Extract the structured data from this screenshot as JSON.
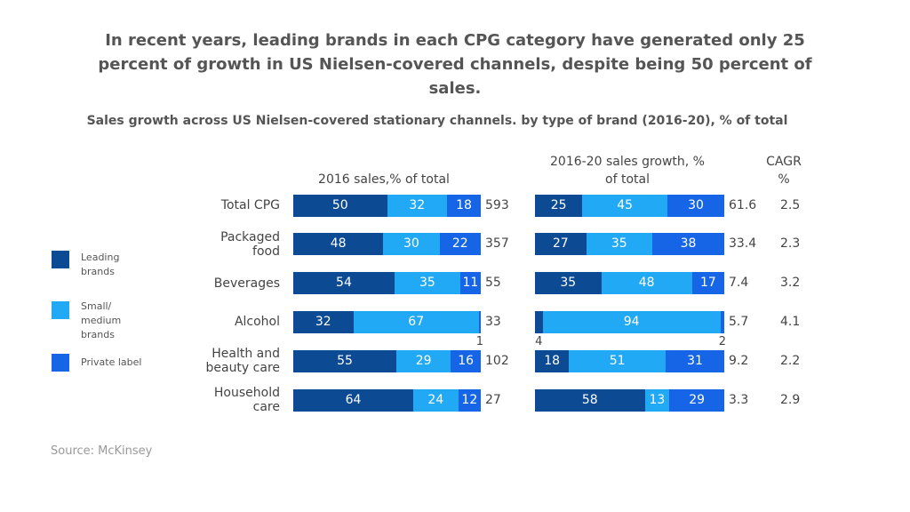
{
  "title": "In recent years, leading brands in each CPG category have generated only 25 percent of growth in US Nielsen-covered channels, despite being 50 percent of sales.",
  "subtitle": "Sales growth across US Nielsen-covered stationary channels. by type of brand (2016-20), % of total",
  "source": "Source: McKinsey",
  "cagr": {
    "title": "CAGR %",
    "values": [
      2.5,
      2.3,
      3.2,
      4.1,
      2.2,
      2.9
    ]
  },
  "chart_data": [
    {
      "type": "bar",
      "title": "2016 sales,% of total",
      "categories": [
        "Total CPG",
        "Packaged food",
        "Beverages",
        "Alcohol",
        "Health and beauty care",
        "Household care"
      ],
      "xlim": [
        0,
        100
      ],
      "series": [
        {
          "name": "Leading brands",
          "color": "#0c4a94",
          "values": [
            50,
            48,
            54,
            32,
            55,
            64
          ]
        },
        {
          "name": "Small/ medium brands",
          "color": "#22a9f5",
          "values": [
            32,
            30,
            35,
            67,
            29,
            24
          ]
        },
        {
          "name": "Private label",
          "color": "#1565e6",
          "values": [
            18,
            22,
            11,
            1,
            16,
            12
          ]
        }
      ],
      "totals": [
        593,
        357,
        55,
        33,
        102,
        27
      ]
    },
    {
      "type": "bar",
      "title": "2016-20 sales growth, % of total",
      "xlim": [
        0,
        100
      ],
      "series": [
        {
          "color": "#0c4a94",
          "values": [
            25,
            27,
            35,
            4,
            18,
            58
          ]
        },
        {
          "color": "#22a9f5",
          "values": [
            45,
            35,
            48,
            94,
            51,
            13
          ]
        },
        {
          "color": "#1565e6",
          "values": [
            30,
            38,
            17,
            2,
            31,
            29
          ]
        }
      ],
      "totals": [
        61.6,
        33.4,
        7.4,
        5.7,
        9.2,
        3.3
      ]
    }
  ]
}
